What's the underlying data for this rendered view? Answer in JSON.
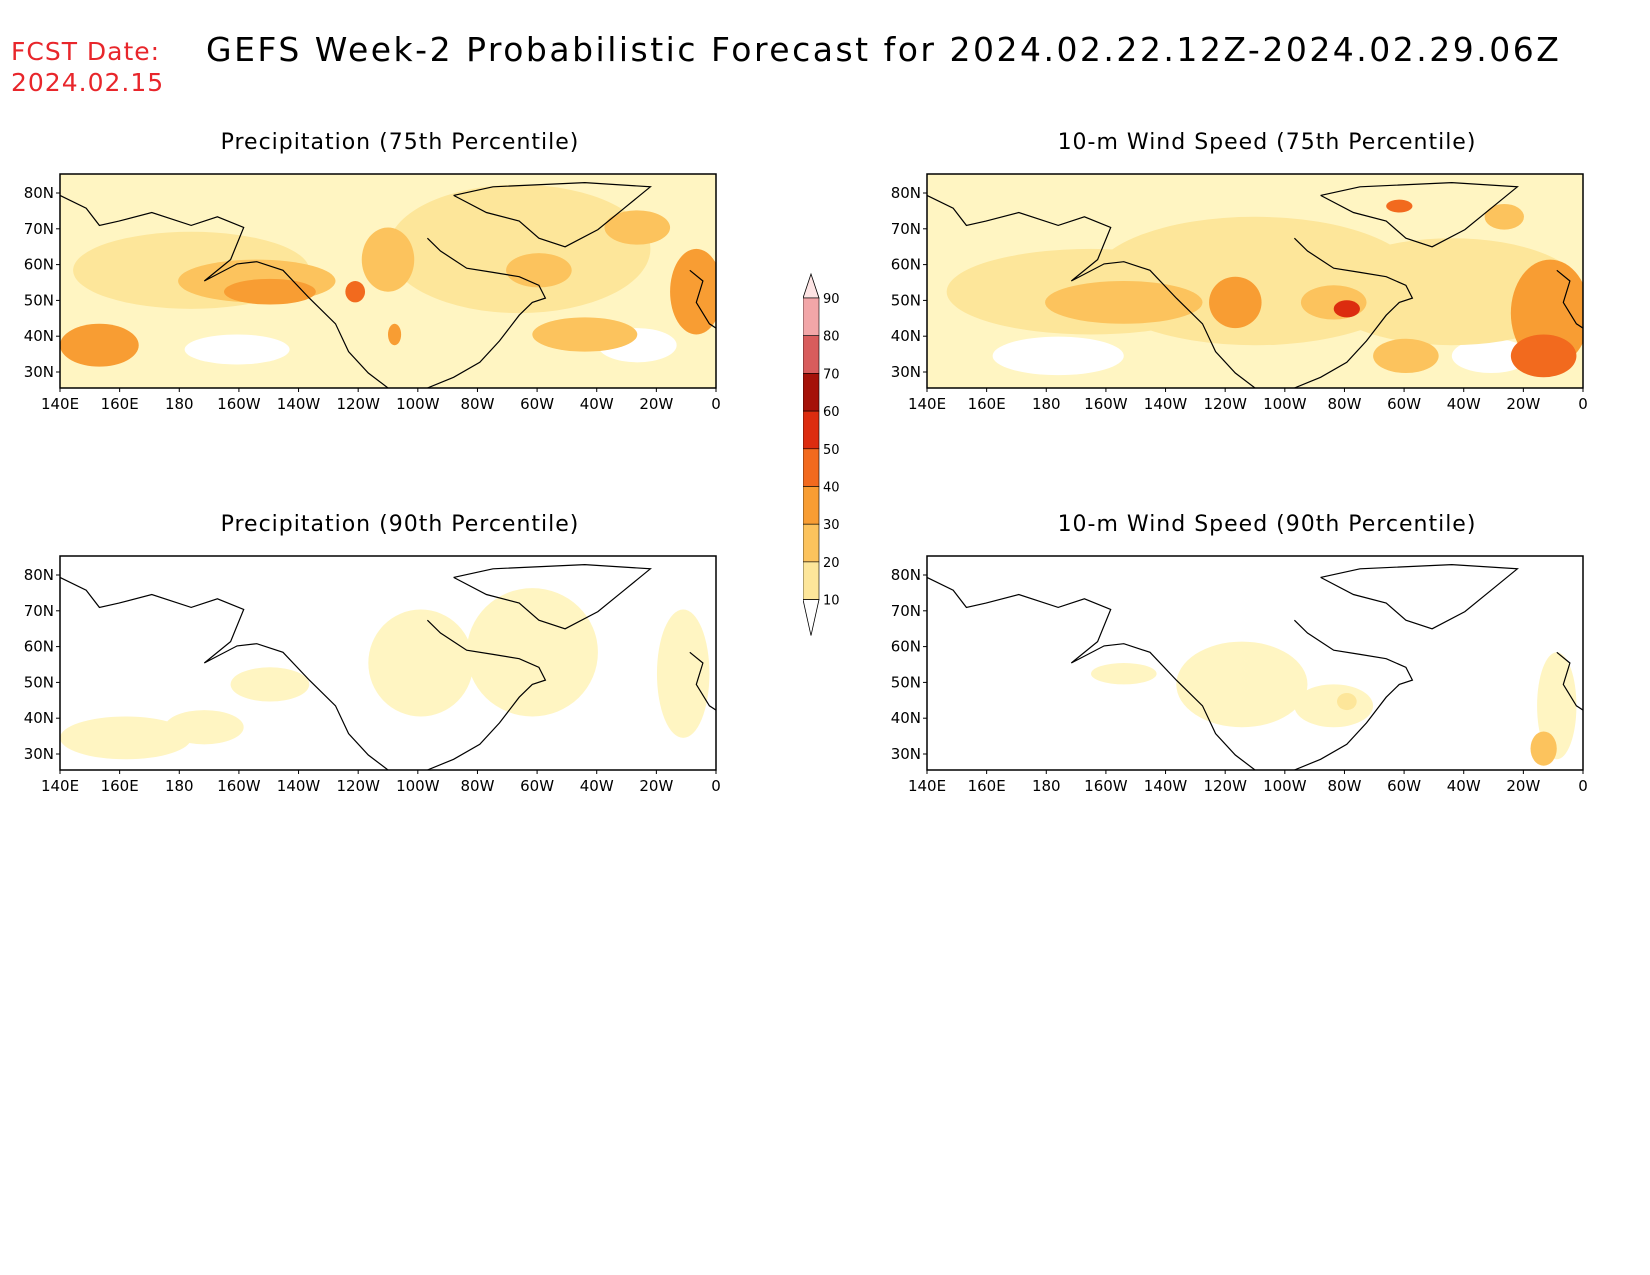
{
  "header": {
    "fcst_label": "FCST Date:",
    "fcst_date": "2024.02.15",
    "title": "GEFS Week-2 Probabilistic Forecast for 2024.02.22.12Z-2024.02.29.06Z"
  },
  "axes": {
    "lat_labels": [
      "80N",
      "70N",
      "60N",
      "50N",
      "40N",
      "30N"
    ],
    "lon_labels": [
      "140E",
      "160E",
      "180",
      "160W",
      "140W",
      "120W",
      "100W",
      "80W",
      "60W",
      "40W",
      "20W",
      "0"
    ]
  },
  "panels": [
    {
      "id": "precip-75",
      "title": "Precipitation (75th Percentile)",
      "intensity": "high"
    },
    {
      "id": "wind-75",
      "title": "10-m Wind Speed (75th Percentile)",
      "intensity": "high-wind"
    },
    {
      "id": "precip-90",
      "title": "Precipitation (90th Percentile)",
      "intensity": "low"
    },
    {
      "id": "wind-90",
      "title": "10-m Wind Speed (90th Percentile)",
      "intensity": "low-wind"
    }
  ],
  "colorbar": {
    "levels": [
      "10",
      "20",
      "30",
      "40",
      "50",
      "60",
      "70",
      "80",
      "90"
    ],
    "colors": [
      "#fff5c2",
      "#fde69a",
      "#fcc35d",
      "#f89d33",
      "#f26a1e",
      "#dc2c0f",
      "#a51209",
      "#d85c5c",
      "#f2a6a8",
      "#fde4e4"
    ]
  }
}
